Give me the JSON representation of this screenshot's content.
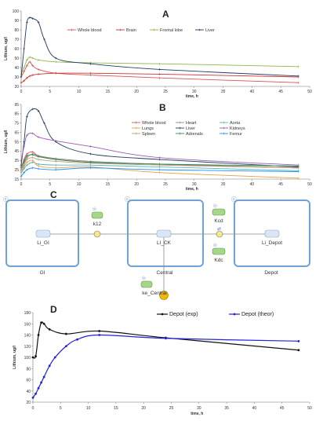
{
  "chart_data": [
    {
      "panel": "A",
      "type": "line",
      "xlabel": "time, h",
      "ylabel": "Lithium, ug/l",
      "xlim": [
        0,
        50
      ],
      "ylim": [
        20,
        100
      ],
      "xticks": [
        0,
        5,
        10,
        15,
        20,
        25,
        30,
        35,
        40,
        45,
        50
      ],
      "yticks": [
        20,
        30,
        40,
        50,
        60,
        70,
        80,
        90,
        100
      ],
      "legend_position": "top",
      "series": [
        {
          "name": "Whole blood",
          "color": "#d9534f",
          "x": [
            0,
            0.5,
            1,
            1.5,
            2,
            3,
            6,
            12,
            24,
            48
          ],
          "y": [
            30,
            36,
            42,
            46,
            42,
            38,
            34,
            32,
            29,
            24
          ]
        },
        {
          "name": "Brain",
          "color": "#cc3333",
          "x": [
            0,
            0.5,
            1,
            1.5,
            2,
            3,
            6,
            12,
            24,
            48
          ],
          "y": [
            24,
            26,
            29,
            31,
            32,
            33,
            34,
            34,
            33,
            30
          ]
        },
        {
          "name": "Frontal lobe",
          "color": "#8db845",
          "x": [
            0,
            0.5,
            1,
            1.5,
            2,
            3,
            6,
            12,
            24,
            48
          ],
          "y": [
            33,
            40,
            48,
            51,
            50,
            48,
            46,
            45,
            44,
            41
          ]
        },
        {
          "name": "Liver",
          "color": "#1f3a5f",
          "x": [
            0,
            0.5,
            1,
            1.5,
            2,
            3,
            4,
            6,
            12,
            24,
            48
          ],
          "y": [
            30,
            60,
            88,
            93,
            92,
            88,
            70,
            50,
            44,
            38,
            31
          ]
        }
      ]
    },
    {
      "panel": "B",
      "type": "line",
      "xlabel": "time, h",
      "ylabel": "Lithium, ug/l",
      "xlim": [
        0,
        50
      ],
      "ylim": [
        15,
        95
      ],
      "xticks": [
        0,
        5,
        10,
        15,
        20,
        25,
        30,
        35,
        40,
        45,
        50
      ],
      "yticks": [
        15,
        25,
        35,
        45,
        55,
        65,
        75,
        85,
        95
      ],
      "legend_position": "top-right",
      "series": [
        {
          "name": "Whole blood",
          "color": "#d9534f",
          "x": [
            0,
            0.5,
            1,
            2,
            3,
            6,
            12,
            24,
            48
          ],
          "y": [
            27,
            36,
            42,
            44,
            40,
            36,
            33,
            31,
            27
          ]
        },
        {
          "name": "Heart",
          "color": "#888888",
          "x": [
            0,
            0.5,
            1,
            2,
            3,
            6,
            12,
            24,
            48
          ],
          "y": [
            25,
            32,
            38,
            42,
            40,
            37,
            34,
            31,
            27
          ]
        },
        {
          "name": "Aorta",
          "color": "#4fb3bf",
          "x": [
            0,
            0.5,
            1,
            2,
            3,
            6,
            12,
            24,
            48
          ],
          "y": [
            22,
            26,
            30,
            33,
            31,
            30,
            30,
            28,
            24
          ]
        },
        {
          "name": "Lungs",
          "color": "#e8a040",
          "x": [
            0,
            0.5,
            1,
            2,
            3,
            6,
            12,
            24,
            48
          ],
          "y": [
            24,
            28,
            33,
            35,
            29,
            27,
            28,
            22,
            16
          ]
        },
        {
          "name": "Liver",
          "color": "#1f3a5f",
          "x": [
            0,
            0.5,
            1,
            2,
            3,
            4,
            6,
            12,
            24,
            48
          ],
          "y": [
            30,
            55,
            82,
            90,
            88,
            75,
            55,
            42,
            36,
            28
          ]
        },
        {
          "name": "Kidneys",
          "color": "#9b59b6",
          "x": [
            0,
            0.5,
            1,
            2,
            3,
            6,
            12,
            24,
            48
          ],
          "y": [
            35,
            50,
            62,
            64,
            60,
            56,
            50,
            38,
            30
          ]
        },
        {
          "name": "Spleen",
          "color": "#b8a070",
          "x": [
            0,
            0.5,
            1,
            2,
            3,
            6,
            12,
            24,
            48
          ],
          "y": [
            22,
            30,
            36,
            38,
            36,
            34,
            32,
            30,
            27
          ]
        },
        {
          "name": "Adrenals",
          "color": "#2e8b57",
          "x": [
            0,
            0.5,
            1,
            2,
            3,
            6,
            12,
            24,
            48
          ],
          "y": [
            28,
            34,
            40,
            41,
            39,
            36,
            33,
            31,
            29
          ]
        },
        {
          "name": "Femur",
          "color": "#1e90ff",
          "x": [
            0,
            0.5,
            1,
            2,
            3,
            6,
            12,
            24,
            48
          ],
          "y": [
            18,
            22,
            25,
            27,
            26,
            25,
            27,
            25,
            23
          ]
        }
      ]
    },
    {
      "panel": "D",
      "type": "line",
      "xlabel": "time, h",
      "ylabel": "Lithium, ug/l",
      "xlim": [
        0,
        50
      ],
      "ylim": [
        20,
        180
      ],
      "xticks": [
        0,
        5,
        10,
        15,
        20,
        25,
        30,
        35,
        40,
        45,
        50
      ],
      "yticks": [
        20,
        40,
        60,
        80,
        100,
        120,
        140,
        160,
        180
      ],
      "legend_position": "top-right",
      "series": [
        {
          "name": "Depot (exp)",
          "color": "#111111",
          "x": [
            0,
            0.5,
            1,
            1.5,
            2,
            3,
            6,
            12,
            24,
            48
          ],
          "y": [
            100,
            102,
            140,
            162,
            160,
            150,
            142,
            147,
            135,
            113
          ]
        },
        {
          "name": "Depot (theor)",
          "color": "#2222dd",
          "x": [
            0,
            0.5,
            1,
            1.5,
            2,
            3,
            4,
            6,
            8,
            12,
            24,
            48
          ],
          "y": [
            28,
            35,
            45,
            55,
            65,
            85,
            100,
            120,
            132,
            140,
            134,
            129
          ]
        }
      ]
    }
  ],
  "panel_letters": {
    "a": "A",
    "b": "B",
    "c": "C",
    "d": "D"
  },
  "diagram": {
    "compartments": {
      "gi": "GI",
      "central": "Central",
      "depot": "Depot"
    },
    "nodes": {
      "li_gi": "Li_GI",
      "li_ck": "LI_CK",
      "li_depot": "Li_Depot"
    },
    "params": {
      "k12": "k12",
      "kcd": "Kcd",
      "kdc": "Kdc",
      "ke": "ke_Central"
    }
  }
}
